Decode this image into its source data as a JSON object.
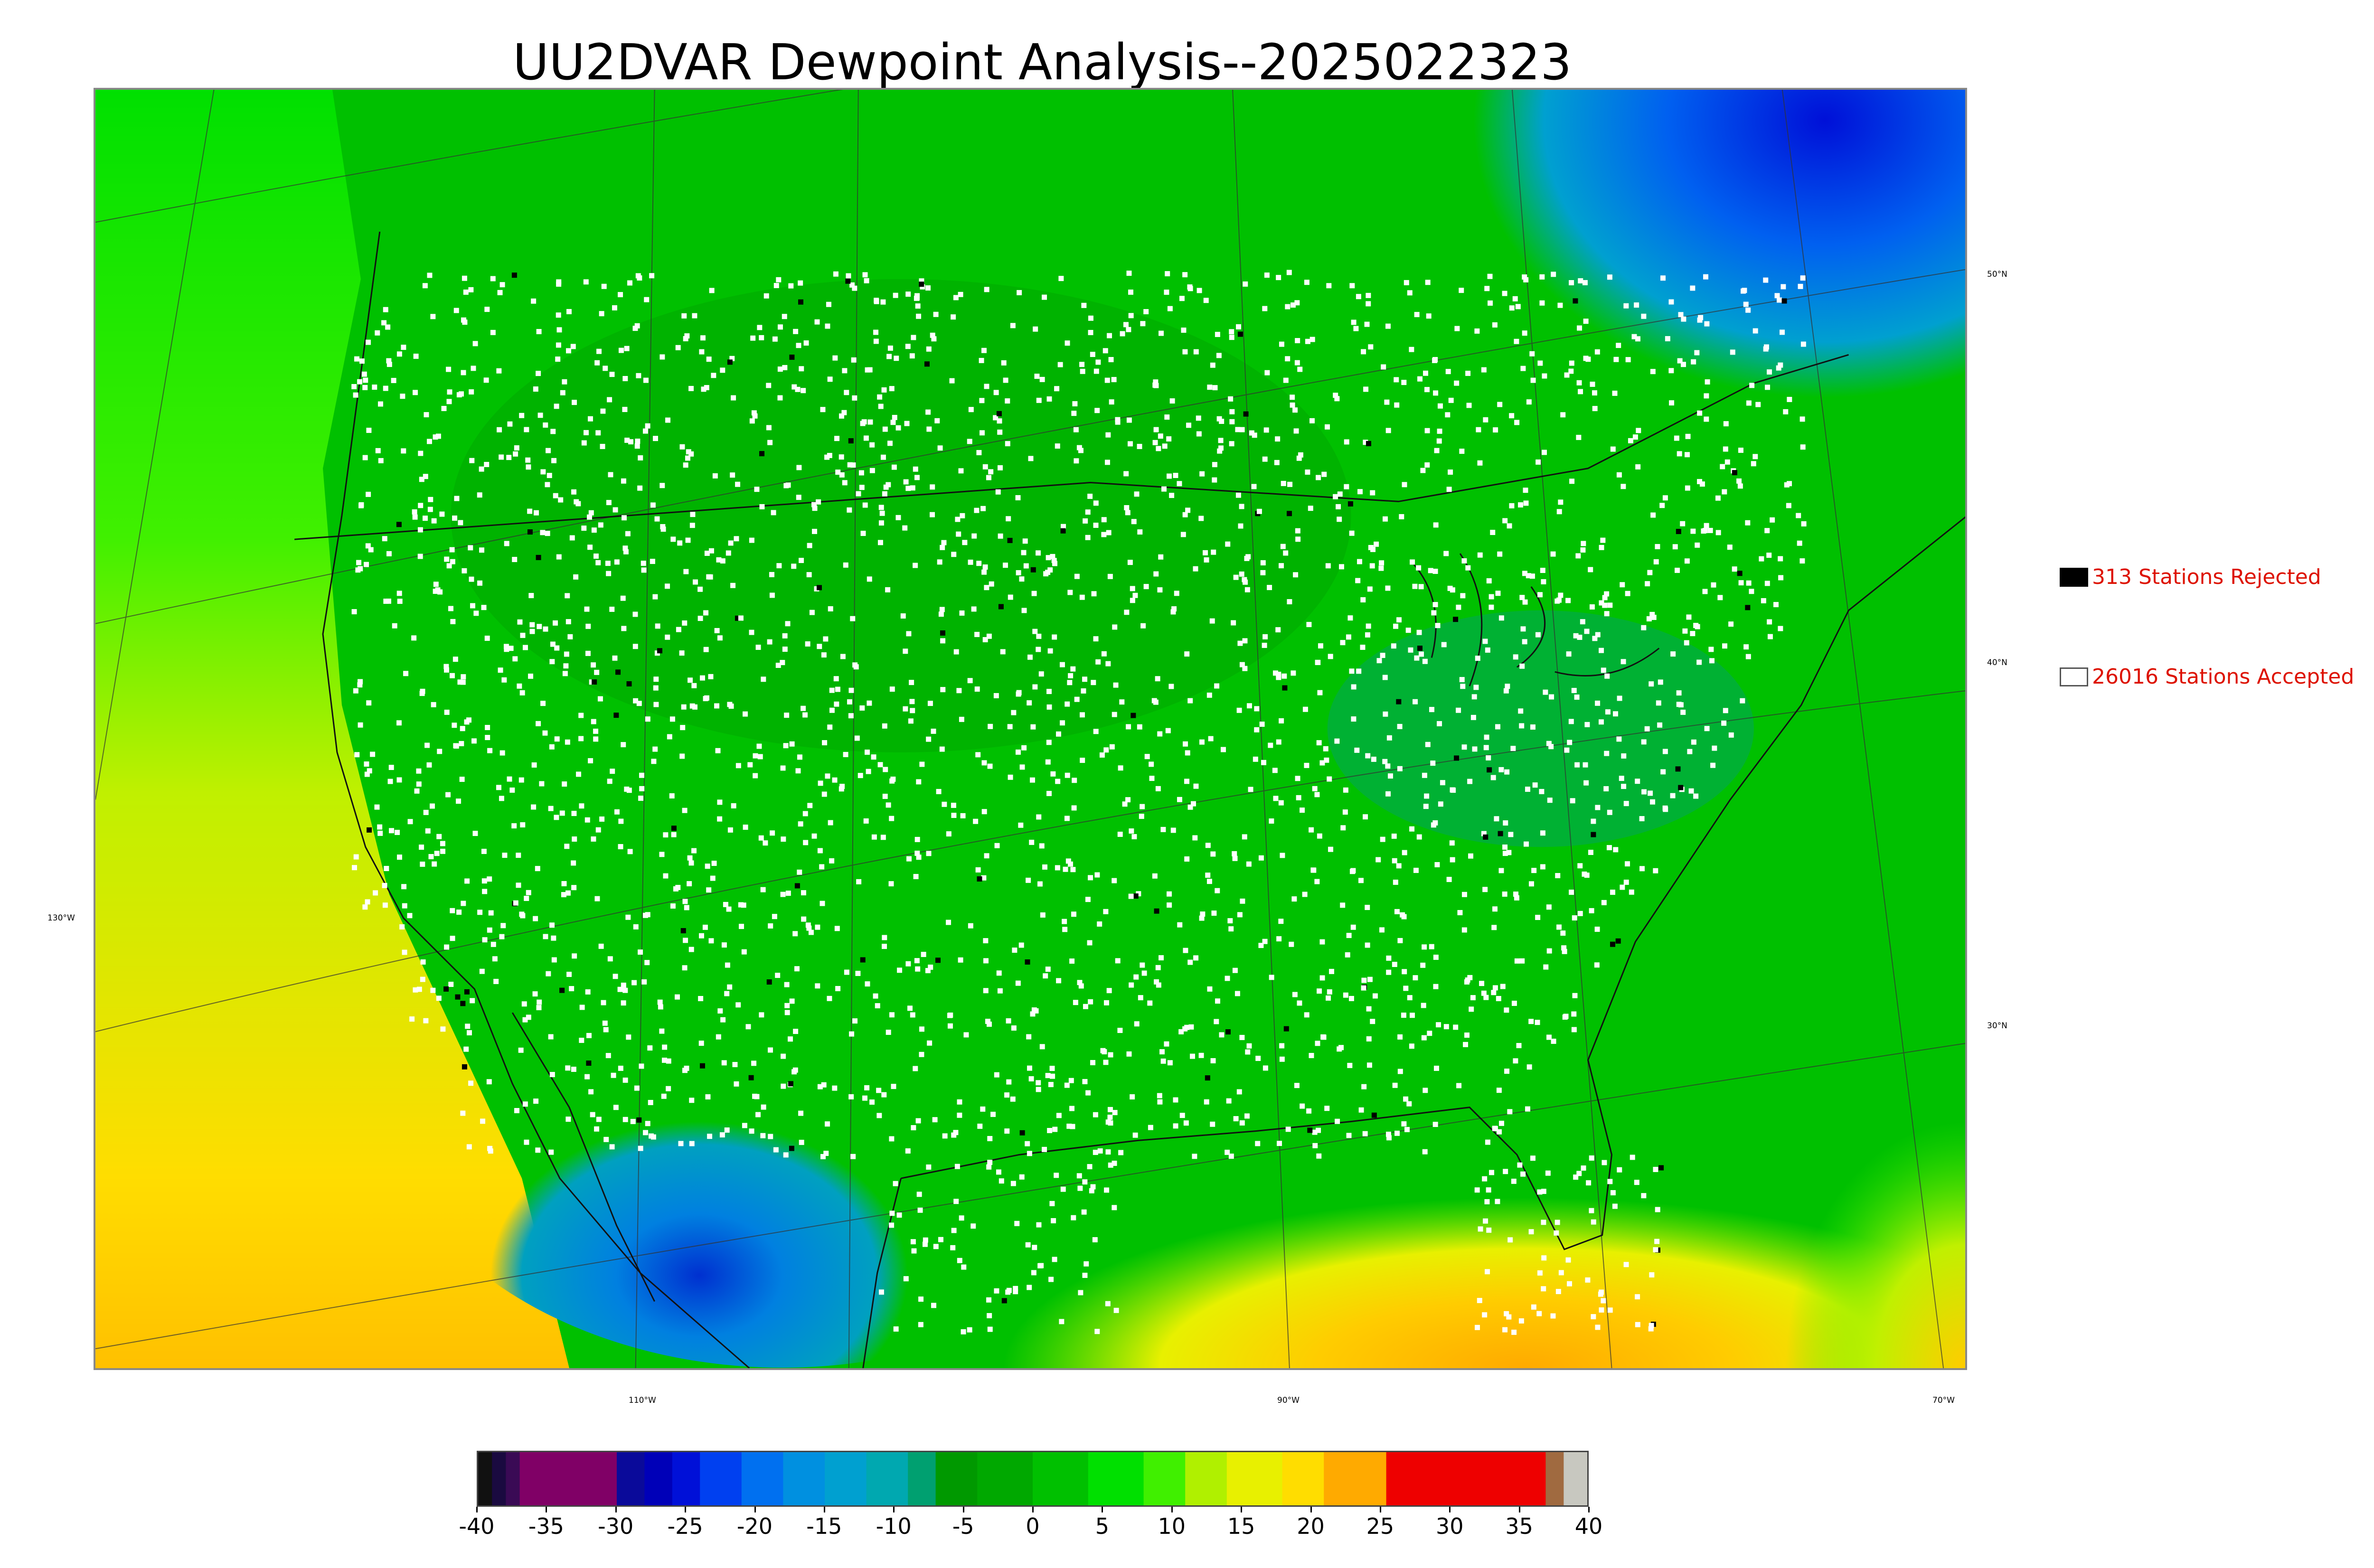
{
  "title": "UU2DVAR Dewpoint Analysis--2025022323",
  "legend": {
    "rejected_label": "313 Stations Rejected",
    "accepted_label": "26016 Stations Accepted",
    "rejected_color": "#000000",
    "accepted_color": "#ffffff",
    "text_color": "#dd1100"
  },
  "map": {
    "latitude_labels": [
      "50°N",
      "40°N",
      "30°N"
    ],
    "longitude_labels": [
      "130°W",
      "110°W",
      "90°W",
      "70°W"
    ]
  },
  "colorbar": {
    "ticks": [
      "-40",
      "-35",
      "-30",
      "-25",
      "-20",
      "-15",
      "-10",
      "-5",
      "0",
      "5",
      "10",
      "15",
      "20",
      "25",
      "30",
      "35",
      "40"
    ],
    "range": [
      -40,
      40
    ],
    "colors": [
      {
        "from": -40,
        "to": -39,
        "color": "#111111"
      },
      {
        "from": -39,
        "to": -38,
        "color": "#1a0a40"
      },
      {
        "from": -38,
        "to": -37,
        "color": "#3a0a55"
      },
      {
        "from": -37,
        "to": -30,
        "color": "#800066"
      },
      {
        "from": -30,
        "to": -28,
        "color": "#0a0a9a"
      },
      {
        "from": -28,
        "to": -26,
        "color": "#0000b8"
      },
      {
        "from": -26,
        "to": -24,
        "color": "#0010d8"
      },
      {
        "from": -24,
        "to": -21,
        "color": "#0040f0"
      },
      {
        "from": -21,
        "to": -18,
        "color": "#0070f0"
      },
      {
        "from": -18,
        "to": -15,
        "color": "#0090e0"
      },
      {
        "from": -15,
        "to": -12,
        "color": "#00a0d0"
      },
      {
        "from": -12,
        "to": -9,
        "color": "#00a8b0"
      },
      {
        "from": -9,
        "to": -7,
        "color": "#00a070"
      },
      {
        "from": -7,
        "to": -4,
        "color": "#009900"
      },
      {
        "from": -4,
        "to": 0,
        "color": "#00a800"
      },
      {
        "from": 0,
        "to": 4,
        "color": "#00c000"
      },
      {
        "from": 4,
        "to": 8,
        "color": "#00e000"
      },
      {
        "from": 8,
        "to": 11,
        "color": "#40f000"
      },
      {
        "from": 11,
        "to": 14,
        "color": "#b0f000"
      },
      {
        "from": 14,
        "to": 18,
        "color": "#e8f000"
      },
      {
        "from": 18,
        "to": 21,
        "color": "#ffdd00"
      },
      {
        "from": 21,
        "to": 25.5,
        "color": "#ffaa00"
      },
      {
        "from": 25.5,
        "to": 37,
        "color": "#ee0000"
      },
      {
        "from": 37,
        "to": 38.3,
        "color": "#a06a40"
      },
      {
        "from": 38.3,
        "to": 40,
        "color": "#c8c8c0"
      }
    ]
  }
}
